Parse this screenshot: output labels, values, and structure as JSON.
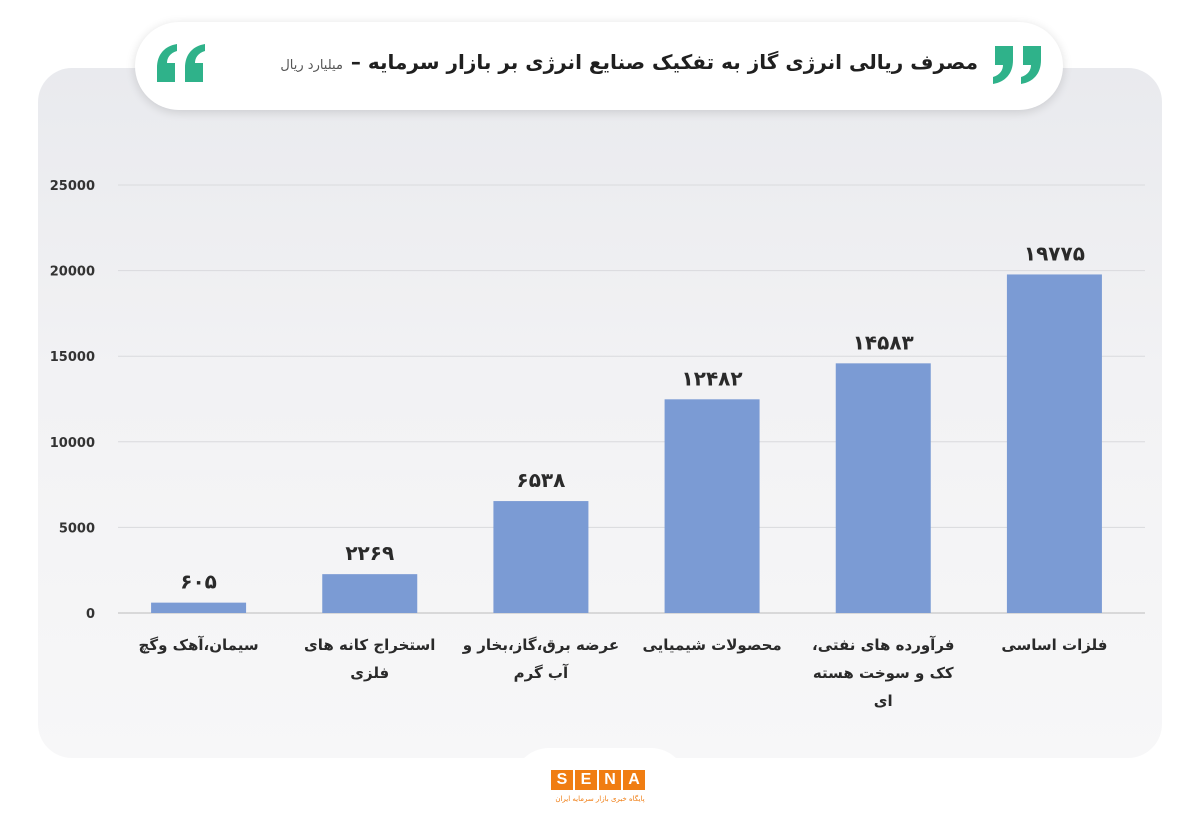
{
  "title": "مصرف ریالی انرژی گاز به تفکیک صنایع انرژی بر بازار سرمایه –",
  "unit": "میلیارد ریال",
  "colors": {
    "bar": "#7b9bd4",
    "accent": "#2fb28a",
    "logo": "#f07d12",
    "text": "#2a2a2a"
  },
  "icons": {
    "quote_left": "open-quote-icon",
    "quote_right": "close-quote-icon"
  },
  "logo": {
    "letters": [
      "S",
      "E",
      "N",
      "A"
    ],
    "tagline": "پایگاه خبری بازار سرمایه ایران"
  },
  "chart_data": {
    "type": "bar",
    "title": "مصرف ریالی انرژی گاز به تفکیک صنایع انرژی بر بازار سرمایه –",
    "ylabel": "میلیارد ریال",
    "xlabel": "",
    "ylim": [
      0,
      25000
    ],
    "yticks": [
      0,
      5000,
      10000,
      15000,
      20000,
      25000
    ],
    "ytick_labels": [
      "0",
      "5000",
      "10000",
      "15000",
      "20000",
      "25000"
    ],
    "grid": true,
    "categories": [
      [
        "سیمان،آهک وگچ"
      ],
      [
        "استخراج کانه های",
        "فلزی"
      ],
      [
        "عرضه برق،گاز،بخار و",
        "آب گرم"
      ],
      [
        "محصولات شیمیایی"
      ],
      [
        "فرآورده های نفتی،",
        "کک و سوخت هسته",
        "ای"
      ],
      [
        "فلزات اساسی"
      ]
    ],
    "values": [
      605,
      2269,
      6538,
      12482,
      14583,
      19775
    ],
    "data_labels": [
      "۶۰۵",
      "۲۲۶۹",
      "۶۵۳۸",
      "۱۲۴۸۲",
      "۱۴۵۸۳",
      "۱۹۷۷۵"
    ]
  }
}
